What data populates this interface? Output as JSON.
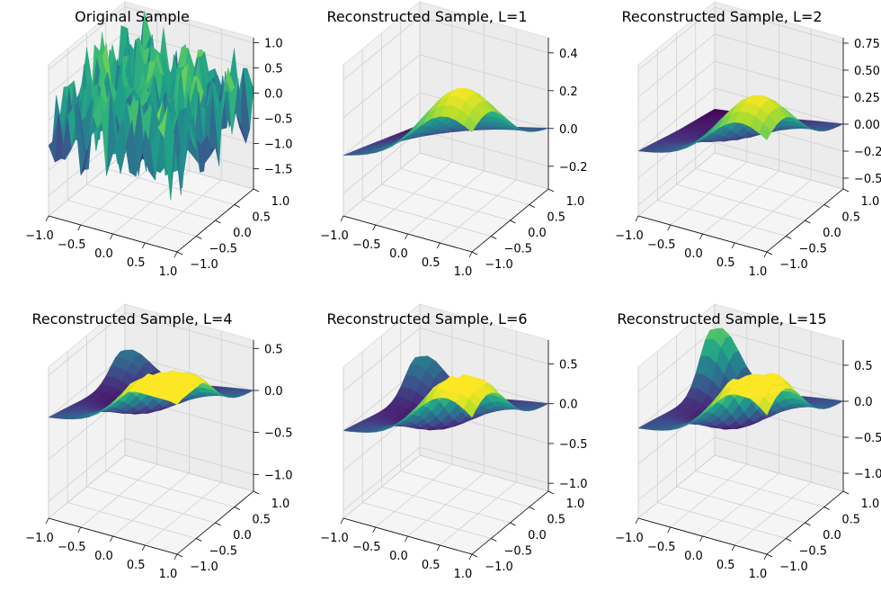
{
  "chart_data": [
    {
      "type": "surface3d",
      "title": "Original Sample",
      "x_ticks": [
        "−1.0",
        "−0.5",
        "0.0",
        "0.5",
        "1.0"
      ],
      "y_ticks": [
        "−1.0",
        "−0.5",
        "0.0",
        "0.5",
        "1.0"
      ],
      "z_ticks": [
        "1.0",
        "0.5",
        "0.0",
        "−0.5",
        "−1.0",
        "−1.5"
      ],
      "z_tick_values": [
        1.0,
        0.5,
        0.0,
        -0.5,
        -1.0,
        -1.5
      ],
      "zlim": [
        -1.9,
        1.1
      ],
      "colormap": "viridis",
      "surface": {
        "kind": "noisy",
        "coeffs": [],
        "amplitude": 1.0
      }
    },
    {
      "type": "surface3d",
      "title": "Reconstructed Sample, L=1",
      "x_ticks": [
        "−1.0",
        "−0.5",
        "0.0",
        "0.5",
        "1.0"
      ],
      "y_ticks": [
        "−1.0",
        "−0.5",
        "0.0",
        "0.5",
        "1.0"
      ],
      "z_ticks": [
        "0.4",
        "0.2",
        "0.0",
        "−0.2"
      ],
      "z_tick_values": [
        0.4,
        0.2,
        0.0,
        -0.2
      ],
      "zlim": [
        -0.32,
        0.48
      ],
      "colormap": "viridis",
      "surface": {
        "kind": "smooth",
        "coeffs": [
          0.45,
          0.0,
          0.0
        ],
        "amplitude": 0.38
      }
    },
    {
      "type": "surface3d",
      "title": "Reconstructed Sample, L=2",
      "x_ticks": [
        "−1.0",
        "−0.5",
        "0.0",
        "0.5",
        "1.0"
      ],
      "y_ticks": [
        "−1.0",
        "−0.5",
        "0.0",
        "0.5",
        "1.0"
      ],
      "z_ticks": [
        "0.75",
        "0.50",
        "0.25",
        "0.00",
        "−0.25",
        "−0.50"
      ],
      "z_tick_values": [
        0.75,
        0.5,
        0.25,
        0.0,
        -0.25,
        -0.5
      ],
      "zlim": [
        -0.6,
        0.8
      ],
      "colormap": "viridis",
      "surface": {
        "kind": "smooth",
        "coeffs": [
          0.35,
          0.3,
          0.0
        ],
        "amplitude": 0.55
      }
    },
    {
      "type": "surface3d",
      "title": "Reconstructed Sample, L=4",
      "x_ticks": [
        "−1.0",
        "−0.5",
        "0.0",
        "0.5",
        "1.0"
      ],
      "y_ticks": [
        "−1.0",
        "−0.5",
        "0.0",
        "0.5",
        "1.0"
      ],
      "z_ticks": [
        "0.5",
        "0.0",
        "−0.5",
        "−1.0"
      ],
      "z_tick_values": [
        0.5,
        0.0,
        -0.5,
        -1.0
      ],
      "zlim": [
        -1.2,
        0.6
      ],
      "colormap": "viridis",
      "surface": {
        "kind": "smooth",
        "coeffs": [
          0.3,
          0.45,
          0.35
        ],
        "amplitude": 0.75
      }
    },
    {
      "type": "surface3d",
      "title": "Reconstructed Sample, L=6",
      "x_ticks": [
        "−1.0",
        "−0.5",
        "0.0",
        "0.5",
        "1.0"
      ],
      "y_ticks": [
        "−1.0",
        "−0.5",
        "0.0",
        "0.5",
        "1.0"
      ],
      "z_ticks": [
        "0.5",
        "0.0",
        "−0.5",
        "−1.0"
      ],
      "z_tick_values": [
        0.5,
        0.0,
        -0.5,
        -1.0
      ],
      "zlim": [
        -1.1,
        0.8
      ],
      "colormap": "viridis",
      "surface": {
        "kind": "smooth",
        "coeffs": [
          0.3,
          0.5,
          0.45
        ],
        "amplitude": 0.8
      }
    },
    {
      "type": "surface3d",
      "title": "Reconstructed Sample, L=15",
      "x_ticks": [
        "−1.0",
        "−0.5",
        "0.0",
        "0.5",
        "1.0"
      ],
      "y_ticks": [
        "−1.0",
        "−0.5",
        "0.0",
        "0.5",
        "1.0"
      ],
      "z_ticks": [
        "0.5",
        "0.0",
        "−0.5",
        "−1.0"
      ],
      "z_tick_values": [
        0.5,
        0.0,
        -0.5,
        -1.0
      ],
      "zlim": [
        -1.25,
        0.85
      ],
      "colormap": "viridis",
      "surface": {
        "kind": "smooth",
        "coeffs": [
          0.25,
          0.55,
          0.75
        ],
        "amplitude": 0.9
      }
    }
  ]
}
